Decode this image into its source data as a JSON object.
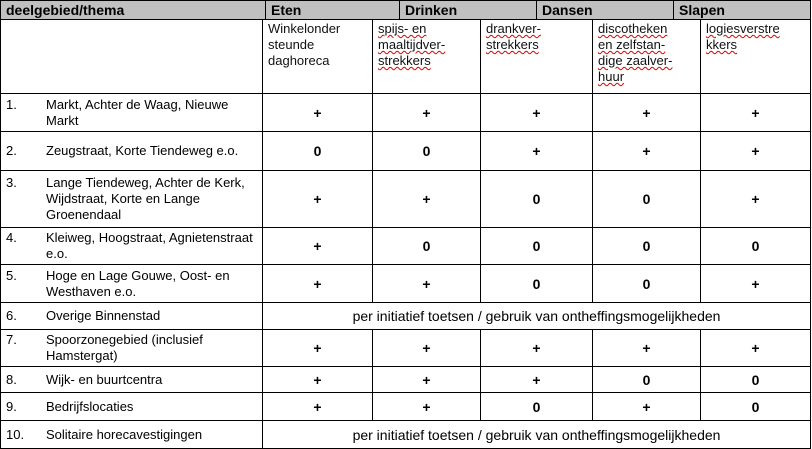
{
  "header": {
    "area": "deelgebied/thema",
    "themes": [
      "Eten",
      "Drinken",
      "Dansen",
      "Slapen"
    ]
  },
  "subheaders": [
    "Winkelondersteunde daghoreca",
    "spijs- en maaltijdverstrekkers",
    "drankverstrekkers",
    "discotheken en zelfstandige zaalverhuur",
    "logiesverstrekkers"
  ],
  "subheader_lines": [
    [
      "Winkelonder",
      "steunde",
      "daghoreca"
    ],
    [
      "spijs- en",
      "maaltijdver-",
      "strekkers"
    ],
    [
      "drankver-",
      "strekkers"
    ],
    [
      "discotheken",
      "en zelfstan-",
      "dige zaalver-",
      "huur"
    ],
    [
      "logiesverstre",
      "kkers"
    ]
  ],
  "rows": [
    {
      "num": "1.",
      "name": "Markt, Achter de Waag, Nieuwe Markt",
      "values": [
        "+",
        "+",
        "+",
        "+",
        "+"
      ]
    },
    {
      "num": "2.",
      "name": "Zeugstraat, Korte Tiendeweg e.o.",
      "values": [
        "0",
        "0",
        "+",
        "+",
        "+"
      ]
    },
    {
      "num": "3.",
      "name": "Lange Tiendeweg, Achter de Kerk, Wijdstraat, Korte en Lange Groenendaal",
      "values": [
        "+",
        "+",
        "0",
        "0",
        "+"
      ]
    },
    {
      "num": "4.",
      "name": "Kleiweg, Hoogstraat, Agnietenstraat e.o.",
      "values": [
        "+",
        "0",
        "0",
        "0",
        "0"
      ]
    },
    {
      "num": "5.",
      "name": "Hoge en Lage Gouwe, Oost- en Westhaven e.o.",
      "values": [
        "+",
        "+",
        "0",
        "0",
        "+"
      ]
    },
    {
      "num": "6.",
      "name": "Overige Binnenstad",
      "merged": "per initiatief toetsen / gebruik van ontheffingsmogelijkheden"
    },
    {
      "num": "7.",
      "name": "Spoorzonegebied (inclusief Hamstergat)",
      "values": [
        "+",
        "+",
        "+",
        "+",
        "+"
      ]
    },
    {
      "num": "8.",
      "name": "Wijk- en buurtcentra",
      "values": [
        "+",
        "+",
        "+",
        "0",
        "0"
      ]
    },
    {
      "num": "9.",
      "name": "Bedrijfslocaties",
      "values": [
        "+",
        "+",
        "0",
        "+",
        "0"
      ]
    },
    {
      "num": "10.",
      "name": "Solitaire horecavestigingen",
      "merged": "per initiatief toetsen / gebruik van ontheffingsmogelijkheden"
    }
  ]
}
